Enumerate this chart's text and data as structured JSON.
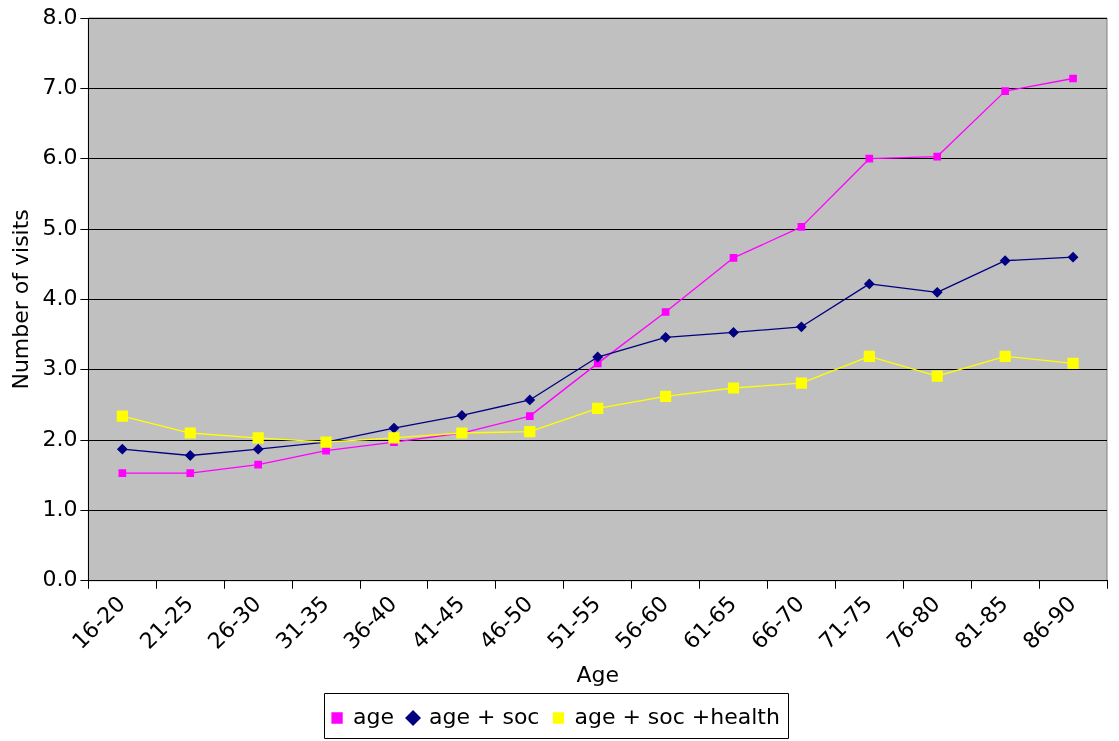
{
  "chart_data": {
    "type": "line",
    "xlabel": "Age",
    "ylabel": "Number of visits",
    "categories": [
      "16-20",
      "21-25",
      "26-30",
      "31-35",
      "36-40",
      "41-45",
      "46-50",
      "51-55",
      "56-60",
      "61-65",
      "66-70",
      "71-75",
      "76-80",
      "81-85",
      "86-90"
    ],
    "series": [
      {
        "name": "age",
        "color": "#ff00ff",
        "marker": "square",
        "values": [
          1.53,
          1.53,
          1.65,
          1.85,
          1.97,
          2.1,
          2.34,
          3.09,
          3.82,
          4.59,
          5.03,
          6.0,
          6.03,
          6.96,
          7.14
        ]
      },
      {
        "name": "age + soc",
        "color": "#000080",
        "marker": "diamond",
        "values": [
          1.87,
          1.78,
          1.87,
          1.97,
          2.17,
          2.35,
          2.57,
          3.18,
          3.46,
          3.53,
          3.61,
          4.22,
          4.1,
          4.55,
          4.6
        ]
      },
      {
        "name": "age + soc +health",
        "color": "#ffff00",
        "marker": "square",
        "values": [
          2.34,
          2.1,
          2.03,
          1.97,
          2.03,
          2.1,
          2.12,
          2.45,
          2.62,
          2.74,
          2.81,
          3.19,
          2.91,
          3.19,
          3.09
        ]
      }
    ],
    "ylim": [
      0,
      8
    ],
    "yticks": [
      {
        "value": 0,
        "label": "0.0"
      },
      {
        "value": 1,
        "label": "1.0"
      },
      {
        "value": 2,
        "label": "2.0"
      },
      {
        "value": 3,
        "label": "3.0"
      },
      {
        "value": 4,
        "label": "4.0"
      },
      {
        "value": 5,
        "label": "5.0"
      },
      {
        "value": 6,
        "label": "6.0"
      },
      {
        "value": 7,
        "label": "7.0"
      },
      {
        "value": 8,
        "label": "8.0"
      }
    ],
    "grid": "y",
    "legend": "bottom",
    "line_style": "solid"
  }
}
